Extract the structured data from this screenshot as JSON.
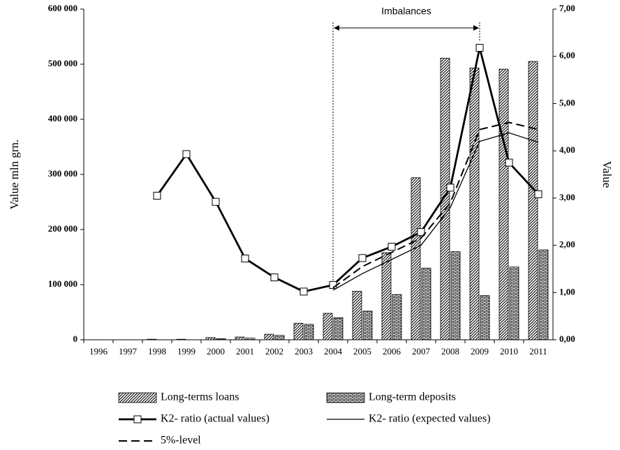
{
  "chart_data": {
    "type": "bar_line",
    "y_label": "Value mln grn.",
    "y2_label": "Value",
    "categories": [
      "1996",
      "1997",
      "1998",
      "1999",
      "2000",
      "2001",
      "2002",
      "2003",
      "2004",
      "2005",
      "2006",
      "2007",
      "2008",
      "2009",
      "2010",
      "2011"
    ],
    "series": [
      {
        "name": "Long-terms loans",
        "type": "bar",
        "pattern": "diagonal",
        "color": "#000000",
        "values": [
          0,
          0,
          1000,
          1000,
          4000,
          5000,
          10000,
          30000,
          48000,
          88000,
          158000,
          294000,
          511000,
          493000,
          491000,
          505000
        ]
      },
      {
        "name": "Long-term deposits",
        "type": "bar",
        "pattern": "brick",
        "color": "#000000",
        "values": [
          0,
          0,
          0,
          0,
          2000,
          3000,
          8000,
          28000,
          40000,
          52000,
          82000,
          130000,
          160000,
          80000,
          132000,
          163000
        ]
      },
      {
        "name": "K2- ratio (actual values)",
        "type": "line",
        "axis": "y2",
        "style": "thick-marker",
        "color": "#000000",
        "values": [
          null,
          null,
          3.05,
          3.93,
          2.92,
          1.72,
          1.32,
          1.02,
          1.16,
          1.73,
          1.97,
          2.28,
          3.22,
          6.18,
          3.75,
          3.08
        ]
      },
      {
        "name": "K2- ratio (expected values)",
        "type": "line",
        "axis": "y2",
        "style": "thin",
        "color": "#000000",
        "values": [
          null,
          null,
          null,
          null,
          null,
          null,
          null,
          null,
          1.05,
          1.4,
          1.7,
          2.0,
          2.8,
          4.2,
          4.38,
          4.18
        ]
      },
      {
        "name": "5%-level",
        "type": "line",
        "axis": "y2",
        "style": "dashed",
        "color": "#000000",
        "values": [
          null,
          null,
          null,
          null,
          null,
          null,
          null,
          null,
          1.1,
          1.55,
          1.85,
          2.15,
          2.9,
          4.45,
          4.6,
          4.45
        ]
      }
    ],
    "ylim": [
      0,
      600000
    ],
    "yticks": [
      0,
      {
        "value": 100000,
        "label": "100 000"
      },
      {
        "value": 200000,
        "label": "200 000"
      },
      {
        "value": 300000,
        "label": "300 000"
      },
      {
        "value": 400000,
        "label": "400 000"
      },
      {
        "value": 500000,
        "label": "500 000"
      },
      {
        "value": 600000,
        "label": "600 000"
      }
    ],
    "y2lim": [
      0,
      7
    ],
    "y2ticks": [
      {
        "value": 0,
        "label": "0,00"
      },
      {
        "value": 1,
        "label": "1,00"
      },
      {
        "value": 2,
        "label": "2,00"
      },
      {
        "value": 3,
        "label": "3,00"
      },
      {
        "value": 4,
        "label": "4,00"
      },
      {
        "value": 5,
        "label": "5,00"
      },
      {
        "value": 6,
        "label": "6,00"
      },
      {
        "value": 7,
        "label": "7,00"
      }
    ],
    "annotation": {
      "text": "Imbalances",
      "span": [
        "2004",
        "2009"
      ]
    },
    "grid": false,
    "legend": "bottom"
  }
}
